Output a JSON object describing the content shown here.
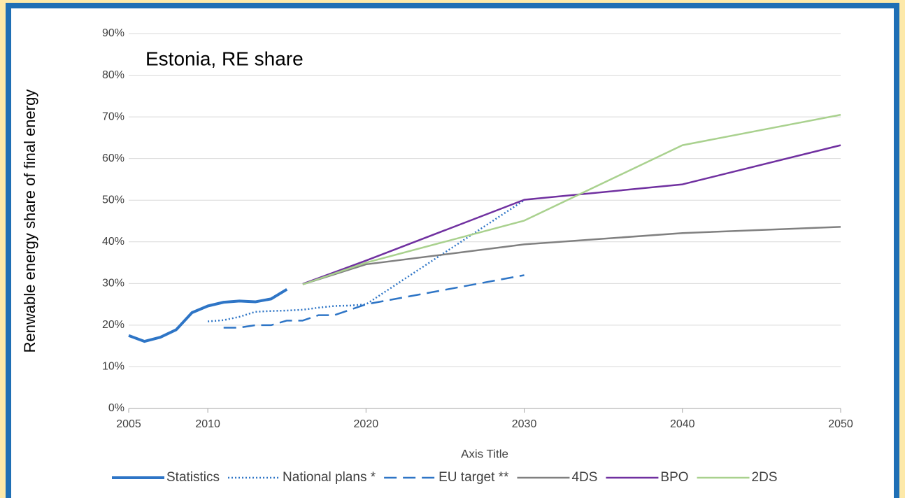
{
  "chart_data": {
    "type": "line",
    "annotation": "Estonia, RE share",
    "y_label": "Renwable energy share of final energy",
    "x_label": "Axis Title",
    "xlim": [
      2005,
      2050
    ],
    "xticks": [
      2005,
      2010,
      2020,
      2030,
      2040,
      2050
    ],
    "ylim": [
      0,
      90
    ],
    "yticks": [
      {
        "value": 0,
        "label": "0%"
      },
      {
        "value": 10,
        "label": "10%"
      },
      {
        "value": 20,
        "label": "20%"
      },
      {
        "value": 30,
        "label": "30%"
      },
      {
        "value": 40,
        "label": "40%"
      },
      {
        "value": 50,
        "label": "50%"
      },
      {
        "value": 60,
        "label": "60%"
      },
      {
        "value": 70,
        "label": "70%"
      },
      {
        "value": 80,
        "label": "80%"
      },
      {
        "value": 90,
        "label": "90%"
      }
    ],
    "grid": true,
    "legend": "bottom",
    "series": [
      {
        "name": "Statistics",
        "color": "#2e75c6",
        "style": "solid-thick",
        "x": [
          2005,
          2006,
          2007,
          2008,
          2009,
          2010,
          2011,
          2012,
          2013,
          2014,
          2015
        ],
        "values": [
          17.5,
          16.1,
          17.1,
          18.9,
          23.0,
          24.6,
          25.5,
          25.8,
          25.6,
          26.3,
          28.6
        ]
      },
      {
        "name": "National plans *",
        "color": "#2e75c6",
        "style": "dotted",
        "x": [
          2010,
          2011,
          2012,
          2013,
          2014,
          2015,
          2016,
          2017,
          2018,
          2019,
          2020,
          2030
        ],
        "values": [
          20.9,
          21.2,
          22.0,
          23.2,
          23.4,
          23.5,
          23.7,
          24.2,
          24.6,
          24.7,
          25.0,
          50.0
        ]
      },
      {
        "name": "EU target **",
        "color": "#2e75c6",
        "style": "dashed",
        "x": [
          2011,
          2012,
          2013,
          2014,
          2015,
          2016,
          2017,
          2018,
          2019,
          2020,
          2030
        ],
        "values": [
          19.4,
          19.4,
          20.0,
          20.0,
          21.1,
          21.1,
          22.4,
          22.4,
          23.7,
          25.0,
          32.0
        ]
      },
      {
        "name": "4DS",
        "color": "#808080",
        "style": "solid",
        "x": [
          2016,
          2020,
          2030,
          2040,
          2050
        ],
        "values": [
          29.8,
          34.6,
          39.4,
          42.1,
          43.6
        ]
      },
      {
        "name": "BPO",
        "color": "#7030a0",
        "style": "solid",
        "x": [
          2016,
          2020,
          2030,
          2040,
          2050
        ],
        "values": [
          29.9,
          35.5,
          50.1,
          53.8,
          63.2
        ]
      },
      {
        "name": "2DS",
        "color": "#a9d18e",
        "style": "solid",
        "x": [
          2016,
          2020,
          2030,
          2040,
          2050
        ],
        "values": [
          29.8,
          35.0,
          45.1,
          63.2,
          70.5
        ]
      }
    ]
  }
}
